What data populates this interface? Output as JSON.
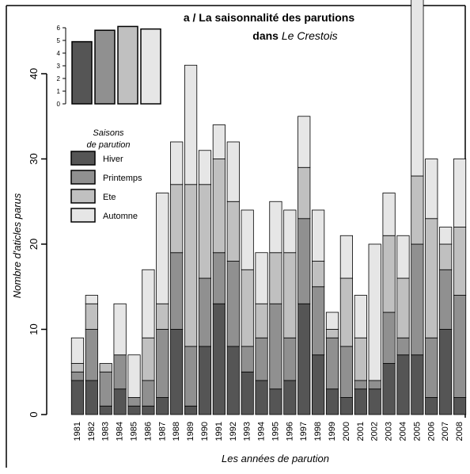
{
  "chart_data": {
    "type": "bar",
    "stacked": true,
    "title": {
      "line1": "a / La saisonnalité des parutions",
      "line2_prefix": "dans ",
      "line2_italic": "Le Crestois"
    },
    "xlabel": "Les années de parution",
    "ylabel": "Nombre d'aticles parus",
    "ylim": [
      0,
      48
    ],
    "yticks": [
      "0",
      "10",
      "20",
      "30",
      "40"
    ],
    "categories": [
      "1981",
      "1982",
      "1983",
      "1984",
      "1985",
      "1986",
      "1987",
      "1988",
      "1989",
      "1990",
      "1991",
      "1992",
      "1993",
      "1994",
      "1995",
      "1996",
      "1997",
      "1998",
      "1999",
      "2000",
      "2001",
      "2002",
      "2003",
      "2004",
      "2005",
      "2006",
      "2007",
      "2008"
    ],
    "series": [
      {
        "name": "Hiver",
        "color": "#555555",
        "values": [
          4,
          4,
          1,
          3,
          1,
          1,
          2,
          10,
          1,
          8,
          13,
          8,
          5,
          4,
          3,
          4,
          13,
          7,
          3,
          2,
          3,
          3,
          6,
          7,
          7,
          2,
          10,
          2
        ]
      },
      {
        "name": "Printemps",
        "color": "#909090",
        "values": [
          1,
          6,
          4,
          4,
          1,
          3,
          8,
          9,
          7,
          8,
          6,
          10,
          3,
          5,
          10,
          5,
          10,
          8,
          6,
          6,
          1,
          1,
          6,
          2,
          13,
          7,
          7,
          12
        ]
      },
      {
        "name": "Ete",
        "color": "#c0c0c0",
        "values": [
          1,
          3,
          1,
          0,
          0,
          5,
          3,
          8,
          19,
          11,
          11,
          7,
          9,
          4,
          6,
          10,
          6,
          3,
          1,
          8,
          5,
          0,
          9,
          7,
          8,
          14,
          3,
          8
        ]
      },
      {
        "name": "Automne",
        "color": "#e6e6e6",
        "values": [
          3,
          1,
          0,
          6,
          5,
          8,
          13,
          5,
          14,
          4,
          4,
          7,
          7,
          6,
          6,
          5,
          6,
          6,
          2,
          5,
          5,
          16,
          5,
          5,
          22,
          7,
          2,
          8
        ]
      }
    ],
    "legend": {
      "title_line1": "Saisons",
      "title_line2": "de parution",
      "position": "left"
    },
    "inset": {
      "type": "bar",
      "categories": [
        "Hiver",
        "Printemps",
        "Ete",
        "Automne"
      ],
      "values": [
        4.9,
        5.8,
        6.1,
        5.9
      ],
      "ylim": [
        0,
        6
      ],
      "yticks": [
        "0",
        "1",
        "2",
        "3",
        "4",
        "5",
        "6"
      ]
    },
    "grid": false
  }
}
